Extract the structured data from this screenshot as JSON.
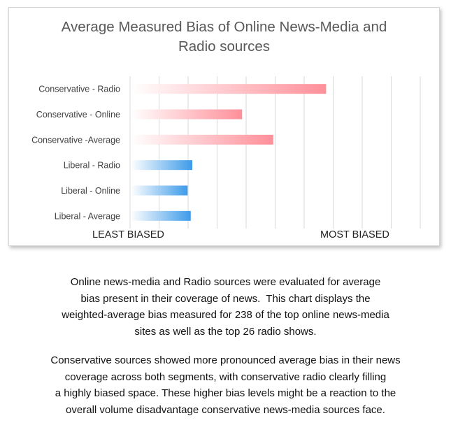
{
  "chart_data": {
    "type": "bar",
    "orientation": "horizontal",
    "title_lines": [
      "Average Measured Bias of Online News-Media and",
      "Radio sources"
    ],
    "categories": [
      "Conservative - Radio",
      "Conservative - Online",
      "Conservative -Average",
      "Liberal - Radio",
      "Liberal - Online",
      "Liberal - Average"
    ],
    "values": [
      63,
      36,
      46,
      20,
      18.5,
      19.5
    ],
    "groups": [
      "conservative",
      "conservative",
      "conservative",
      "liberal",
      "liberal",
      "liberal"
    ],
    "xlim": [
      0,
      100
    ],
    "grid": true,
    "x_axis_labels": {
      "low": "LEAST BIASED",
      "high": "MOST BIASED"
    },
    "colors": {
      "conservative": "#ff8f99",
      "liberal": "#3d9be9",
      "grid": "#d9d9d9"
    }
  },
  "caption": {
    "paragraph1": [
      "Online news-media and Radio sources were evaluated for average",
      "bias present in their coverage of news.  This chart displays the",
      "weighted-average bias measured for 238 of the top online news-media",
      "sites as well as the top 26 radio shows."
    ],
    "paragraph2": [
      "Conservative sources showed more pronounced average bias in their news",
      "coverage across both segments, with conservative radio clearly filling",
      "a highly biased space. These higher bias levels might be a reaction to the",
      "overall volume disadvantage conservative news-media sources face."
    ]
  }
}
